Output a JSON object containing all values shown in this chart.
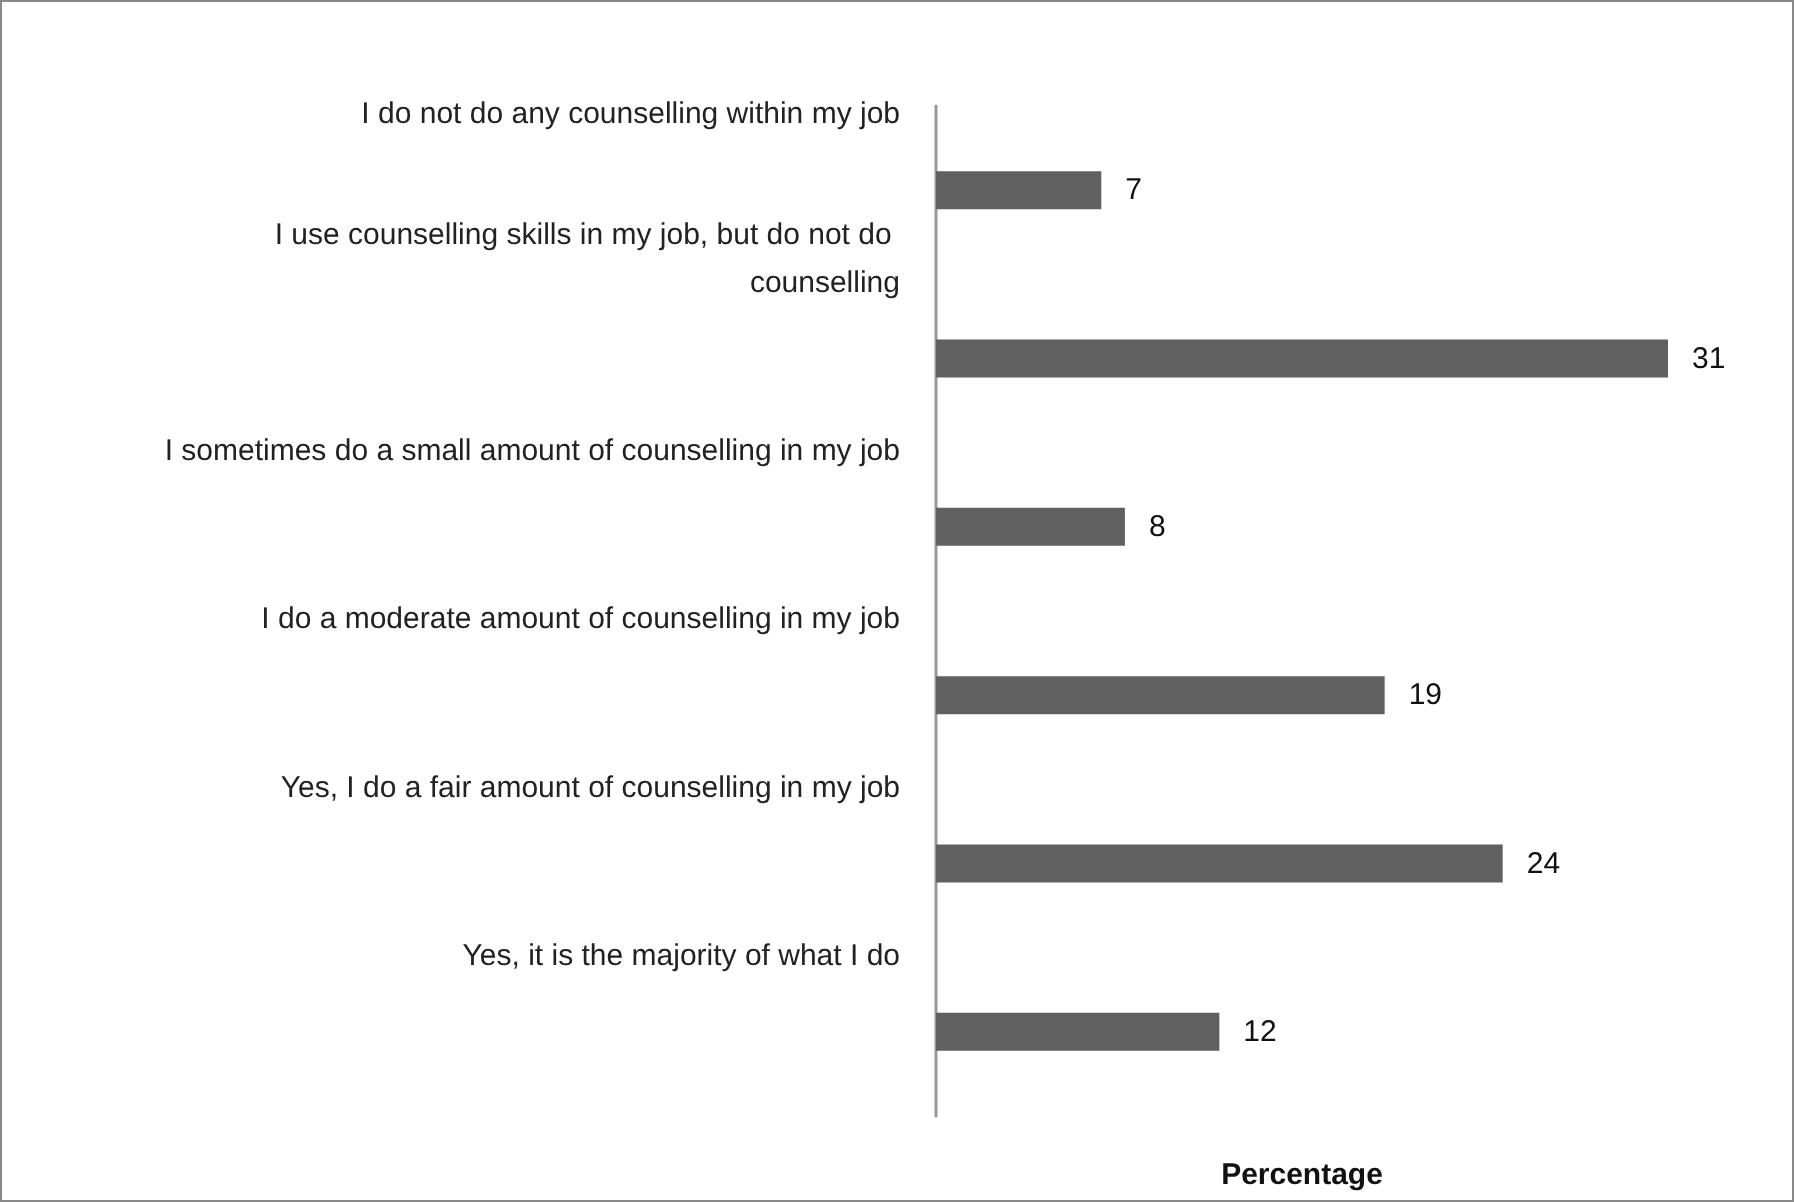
{
  "chart_data": {
    "type": "bar",
    "orientation": "horizontal",
    "categories": [
      "I do not do any counselling within my job",
      "I use counselling skills in my job, but do not do counselling",
      "I sometimes do a small amount of counselling in my job",
      "I do a moderate amount of counselling in my job",
      "Yes, I do a fair amount of counselling in my job",
      "Yes, it is the majority of what I do"
    ],
    "values": [
      7,
      31,
      8,
      19,
      24,
      12
    ],
    "color": "#606060",
    "xlabel": "Percentage",
    "data_labels": true,
    "grid": false,
    "tick_labels": "y"
  }
}
